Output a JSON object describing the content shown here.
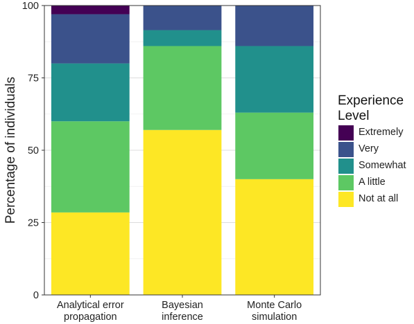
{
  "chart_data": {
    "type": "bar",
    "stacked": true,
    "categories": [
      [
        "Analytical error",
        "propagation"
      ],
      [
        "Bayesian",
        "inference"
      ],
      [
        "Monte Carlo",
        "simulation"
      ]
    ],
    "ylabel": "Percentage of individuals",
    "xlabel": "",
    "ylim": [
      0,
      100
    ],
    "yticks": [
      0,
      25,
      50,
      75,
      100
    ],
    "grid": true,
    "legend_position": "right",
    "legend_title": [
      "Experience",
      "Level"
    ],
    "series": [
      {
        "name": "Not at all",
        "color": "#FDE725",
        "values": [
          28.5,
          57,
          40
        ]
      },
      {
        "name": "A little",
        "color": "#5DC863",
        "values": [
          31.5,
          29,
          23
        ]
      },
      {
        "name": "Somewhat",
        "color": "#21908C",
        "values": [
          20,
          5.5,
          23
        ]
      },
      {
        "name": "Very",
        "color": "#3B528B",
        "values": [
          17,
          8.5,
          14
        ]
      },
      {
        "name": "Extremely",
        "color": "#440154",
        "values": [
          3,
          0,
          0
        ]
      }
    ]
  }
}
